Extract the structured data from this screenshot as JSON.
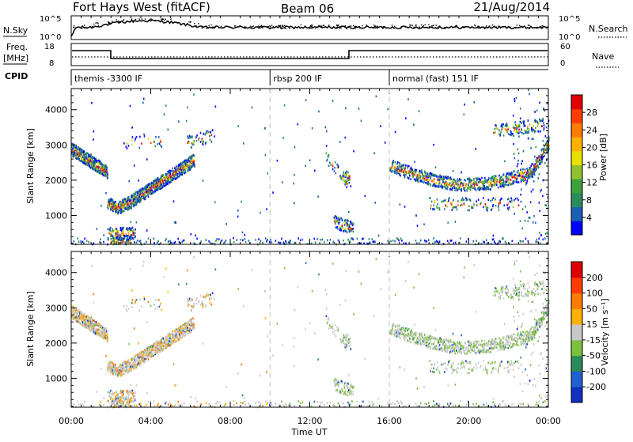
{
  "header": {
    "title": "Fort Hays West (fitACF)",
    "beam": "Beam 06",
    "date": "21/Aug/2014"
  },
  "top_panels": {
    "nsky_label": "N.Sky",
    "nsearch_label": "N.Search",
    "nsky_ticks": [
      "10^5",
      "10^0"
    ],
    "nsearch_ticks": [
      "10^5",
      "10^0"
    ],
    "freq_label": "Freq.",
    "freq_unit": "[MHz]",
    "freq_ticks": [
      "18",
      "8"
    ],
    "nave_label": "Nave",
    "nave_ticks": [
      "60",
      "0"
    ],
    "cpid_label": "CPID",
    "cpid_segments": [
      {
        "label": "themis -3300 IF",
        "start": 0,
        "end": 10
      },
      {
        "label": "rbsp 200 IF",
        "start": 10,
        "end": 16
      },
      {
        "label": "normal (fast) 151 IF",
        "start": 16,
        "end": 24
      }
    ]
  },
  "colorbars": {
    "power": {
      "label": "Power [dB]",
      "ticks": [
        "28",
        "24",
        "20",
        "16",
        "12",
        "8",
        "4"
      ],
      "colors": [
        "#0000ff",
        "#1a5fb4",
        "#2a8a5a",
        "#3ca03c",
        "#90c030",
        "#e8e000",
        "#ffb000",
        "#ff7a00",
        "#ff3a00",
        "#e00000"
      ]
    },
    "velocity": {
      "label": "Velocity [m s⁻¹]",
      "ticks": [
        "200",
        "100",
        "50",
        "15",
        "-15",
        "-50",
        "-100",
        "-200"
      ],
      "colors": [
        "#1030c0",
        "#2060d0",
        "#2a8a5a",
        "#7cc040",
        "#c8c8c8",
        "#ffb000",
        "#ff7a00",
        "#ff3a00",
        "#e00000"
      ]
    }
  },
  "chart_data": [
    {
      "type": "heatmap",
      "title": "",
      "xlabel": "",
      "ylabel": "Slant Range [km]",
      "xlim": [
        0,
        24
      ],
      "ylim": [
        180,
        4600
      ],
      "y_ticks": [
        1000,
        2000,
        3000,
        4000
      ],
      "color_quantity": "Power [dB]",
      "echo_regions": [
        {
          "start_ut": 0.0,
          "end_ut": 1.8,
          "range_from_km": 3100,
          "range_to_km": 2300
        },
        {
          "start_ut": 1.8,
          "end_ut": 2.8,
          "range_from_km": 1600,
          "range_to_km": 1200
        },
        {
          "start_ut": 2.8,
          "end_ut": 6.2,
          "range_from_km": 1300,
          "range_to_km": 2600
        },
        {
          "start_ut": 1.8,
          "end_ut": 3.2,
          "range_from_km": 250,
          "range_to_km": 700
        },
        {
          "start_ut": 13.2,
          "end_ut": 14.2,
          "range_from_km": 600,
          "range_to_km": 1000
        },
        {
          "start_ut": 16.0,
          "end_ut": 24.0,
          "range_from_km": 2400,
          "range_to_km": 2700
        },
        {
          "start_ut": 18.0,
          "end_ut": 22.5,
          "range_from_km": 1300,
          "range_to_km": 1400
        }
      ]
    },
    {
      "type": "heatmap",
      "title": "",
      "xlabel": "Time UT",
      "ylabel": "Slant Range [km]",
      "xlim": [
        0,
        24
      ],
      "ylim": [
        180,
        4600
      ],
      "x_ticks": [
        "00:00",
        "04:00",
        "08:00",
        "12:00",
        "16:00",
        "20:00",
        "00:00"
      ],
      "y_ticks": [
        1000,
        2000,
        3000,
        4000
      ],
      "color_quantity": "Velocity [m s⁻¹]"
    }
  ],
  "time_axis": {
    "label": "Time UT",
    "ticks": [
      "00:00",
      "04:00",
      "08:00",
      "12:00",
      "16:00",
      "20:00",
      "00:00"
    ]
  },
  "range_axis": {
    "label": "Slant Range [km]",
    "ticks": [
      "4000",
      "3000",
      "2000",
      "1000"
    ]
  }
}
